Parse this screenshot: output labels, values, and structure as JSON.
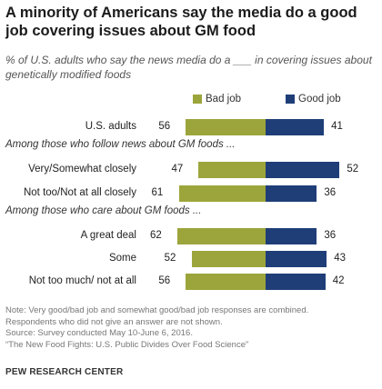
{
  "title": "A minority of Americans say the media do a good job covering issues about GM food",
  "subtitle": "% of U.S. adults who say the news media do a ___ in covering issues about genetically modified foods",
  "notes": [
    "Note: Very good/bad job and somewhat good/bad job responses are combined.",
    "Respondents who did not give an answer are not shown.",
    "Source: Survey conducted May 10-June 6, 2016.",
    "“The New Food Fights: U.S. Public Divides Over Food Science”"
  ],
  "brand": "PEW RESEARCH CENTER",
  "colors": {
    "bad": "#9ca53b",
    "good": "#1f3e78"
  },
  "chart_data": {
    "type": "bar",
    "orientation": "horizontal-diverging",
    "legend": {
      "bad": "Bad job",
      "good": "Good job"
    },
    "groups": [
      {
        "header": "",
        "rows": [
          {
            "label": "U.S. adults",
            "bad": 56,
            "good": 41
          }
        ]
      },
      {
        "header": "Among those who follow news about GM foods ...",
        "rows": [
          {
            "label": "Very/Somewhat closely",
            "bad": 47,
            "good": 52
          },
          {
            "label": "Not too/Not at all closely",
            "bad": 61,
            "good": 36
          }
        ]
      },
      {
        "header": "Among those who care about GM foods ...",
        "rows": [
          {
            "label": "A great deal",
            "bad": 62,
            "good": 36
          },
          {
            "label": "Some",
            "bad": 52,
            "good": 43
          },
          {
            "label": "Not too much/ not at all",
            "bad": 56,
            "good": 42
          }
        ]
      }
    ]
  }
}
